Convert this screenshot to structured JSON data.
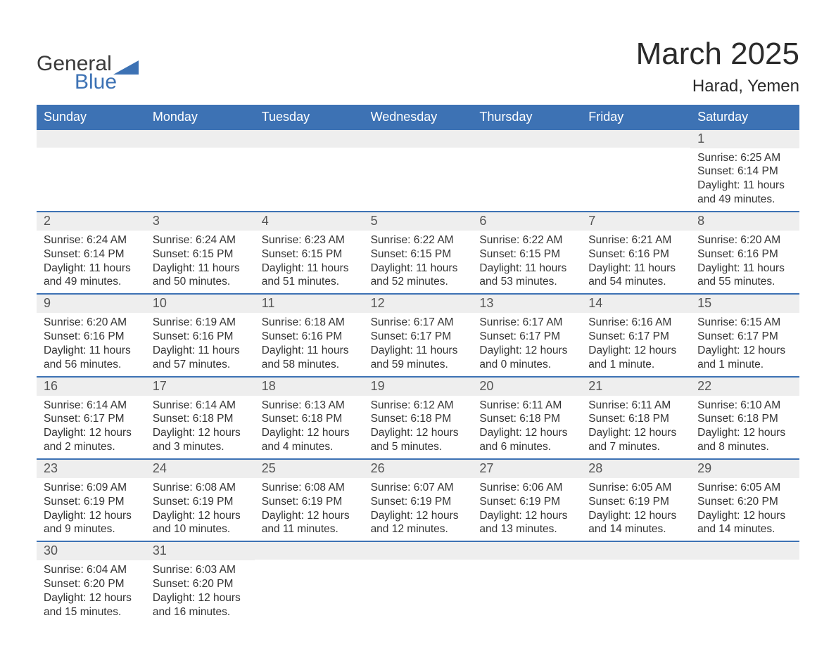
{
  "logo": {
    "text_general": "General",
    "text_blue": "Blue",
    "text_color_general": "#3a3a3a",
    "text_color_blue": "#3d72b4",
    "shape_color": "#3d72b4"
  },
  "title": {
    "month": "March 2025",
    "location": "Harad, Yemen",
    "month_fontsize": 44,
    "location_fontsize": 24,
    "text_color": "#2b2b2b"
  },
  "calendar": {
    "header_bg": "#3d72b4",
    "header_text_color": "#ffffff",
    "row_divider_color": "#3d72b4",
    "daynum_bg": "#eeeeee",
    "daynum_text_color": "#555555",
    "body_text_color": "#333333",
    "background_color": "#ffffff",
    "columns": [
      "Sunday",
      "Monday",
      "Tuesday",
      "Wednesday",
      "Thursday",
      "Friday",
      "Saturday"
    ],
    "weeks": [
      [
        null,
        null,
        null,
        null,
        null,
        null,
        {
          "n": "1",
          "sr": "Sunrise: 6:25 AM",
          "ss": "Sunset: 6:14 PM",
          "dl": "Daylight: 11 hours and 49 minutes."
        }
      ],
      [
        {
          "n": "2",
          "sr": "Sunrise: 6:24 AM",
          "ss": "Sunset: 6:14 PM",
          "dl": "Daylight: 11 hours and 49 minutes."
        },
        {
          "n": "3",
          "sr": "Sunrise: 6:24 AM",
          "ss": "Sunset: 6:15 PM",
          "dl": "Daylight: 11 hours and 50 minutes."
        },
        {
          "n": "4",
          "sr": "Sunrise: 6:23 AM",
          "ss": "Sunset: 6:15 PM",
          "dl": "Daylight: 11 hours and 51 minutes."
        },
        {
          "n": "5",
          "sr": "Sunrise: 6:22 AM",
          "ss": "Sunset: 6:15 PM",
          "dl": "Daylight: 11 hours and 52 minutes."
        },
        {
          "n": "6",
          "sr": "Sunrise: 6:22 AM",
          "ss": "Sunset: 6:15 PM",
          "dl": "Daylight: 11 hours and 53 minutes."
        },
        {
          "n": "7",
          "sr": "Sunrise: 6:21 AM",
          "ss": "Sunset: 6:16 PM",
          "dl": "Daylight: 11 hours and 54 minutes."
        },
        {
          "n": "8",
          "sr": "Sunrise: 6:20 AM",
          "ss": "Sunset: 6:16 PM",
          "dl": "Daylight: 11 hours and 55 minutes."
        }
      ],
      [
        {
          "n": "9",
          "sr": "Sunrise: 6:20 AM",
          "ss": "Sunset: 6:16 PM",
          "dl": "Daylight: 11 hours and 56 minutes."
        },
        {
          "n": "10",
          "sr": "Sunrise: 6:19 AM",
          "ss": "Sunset: 6:16 PM",
          "dl": "Daylight: 11 hours and 57 minutes."
        },
        {
          "n": "11",
          "sr": "Sunrise: 6:18 AM",
          "ss": "Sunset: 6:16 PM",
          "dl": "Daylight: 11 hours and 58 minutes."
        },
        {
          "n": "12",
          "sr": "Sunrise: 6:17 AM",
          "ss": "Sunset: 6:17 PM",
          "dl": "Daylight: 11 hours and 59 minutes."
        },
        {
          "n": "13",
          "sr": "Sunrise: 6:17 AM",
          "ss": "Sunset: 6:17 PM",
          "dl": "Daylight: 12 hours and 0 minutes."
        },
        {
          "n": "14",
          "sr": "Sunrise: 6:16 AM",
          "ss": "Sunset: 6:17 PM",
          "dl": "Daylight: 12 hours and 1 minute."
        },
        {
          "n": "15",
          "sr": "Sunrise: 6:15 AM",
          "ss": "Sunset: 6:17 PM",
          "dl": "Daylight: 12 hours and 1 minute."
        }
      ],
      [
        {
          "n": "16",
          "sr": "Sunrise: 6:14 AM",
          "ss": "Sunset: 6:17 PM",
          "dl": "Daylight: 12 hours and 2 minutes."
        },
        {
          "n": "17",
          "sr": "Sunrise: 6:14 AM",
          "ss": "Sunset: 6:18 PM",
          "dl": "Daylight: 12 hours and 3 minutes."
        },
        {
          "n": "18",
          "sr": "Sunrise: 6:13 AM",
          "ss": "Sunset: 6:18 PM",
          "dl": "Daylight: 12 hours and 4 minutes."
        },
        {
          "n": "19",
          "sr": "Sunrise: 6:12 AM",
          "ss": "Sunset: 6:18 PM",
          "dl": "Daylight: 12 hours and 5 minutes."
        },
        {
          "n": "20",
          "sr": "Sunrise: 6:11 AM",
          "ss": "Sunset: 6:18 PM",
          "dl": "Daylight: 12 hours and 6 minutes."
        },
        {
          "n": "21",
          "sr": "Sunrise: 6:11 AM",
          "ss": "Sunset: 6:18 PM",
          "dl": "Daylight: 12 hours and 7 minutes."
        },
        {
          "n": "22",
          "sr": "Sunrise: 6:10 AM",
          "ss": "Sunset: 6:18 PM",
          "dl": "Daylight: 12 hours and 8 minutes."
        }
      ],
      [
        {
          "n": "23",
          "sr": "Sunrise: 6:09 AM",
          "ss": "Sunset: 6:19 PM",
          "dl": "Daylight: 12 hours and 9 minutes."
        },
        {
          "n": "24",
          "sr": "Sunrise: 6:08 AM",
          "ss": "Sunset: 6:19 PM",
          "dl": "Daylight: 12 hours and 10 minutes."
        },
        {
          "n": "25",
          "sr": "Sunrise: 6:08 AM",
          "ss": "Sunset: 6:19 PM",
          "dl": "Daylight: 12 hours and 11 minutes."
        },
        {
          "n": "26",
          "sr": "Sunrise: 6:07 AM",
          "ss": "Sunset: 6:19 PM",
          "dl": "Daylight: 12 hours and 12 minutes."
        },
        {
          "n": "27",
          "sr": "Sunrise: 6:06 AM",
          "ss": "Sunset: 6:19 PM",
          "dl": "Daylight: 12 hours and 13 minutes."
        },
        {
          "n": "28",
          "sr": "Sunrise: 6:05 AM",
          "ss": "Sunset: 6:19 PM",
          "dl": "Daylight: 12 hours and 14 minutes."
        },
        {
          "n": "29",
          "sr": "Sunrise: 6:05 AM",
          "ss": "Sunset: 6:20 PM",
          "dl": "Daylight: 12 hours and 14 minutes."
        }
      ],
      [
        {
          "n": "30",
          "sr": "Sunrise: 6:04 AM",
          "ss": "Sunset: 6:20 PM",
          "dl": "Daylight: 12 hours and 15 minutes."
        },
        {
          "n": "31",
          "sr": "Sunrise: 6:03 AM",
          "ss": "Sunset: 6:20 PM",
          "dl": "Daylight: 12 hours and 16 minutes."
        },
        null,
        null,
        null,
        null,
        null
      ]
    ]
  }
}
